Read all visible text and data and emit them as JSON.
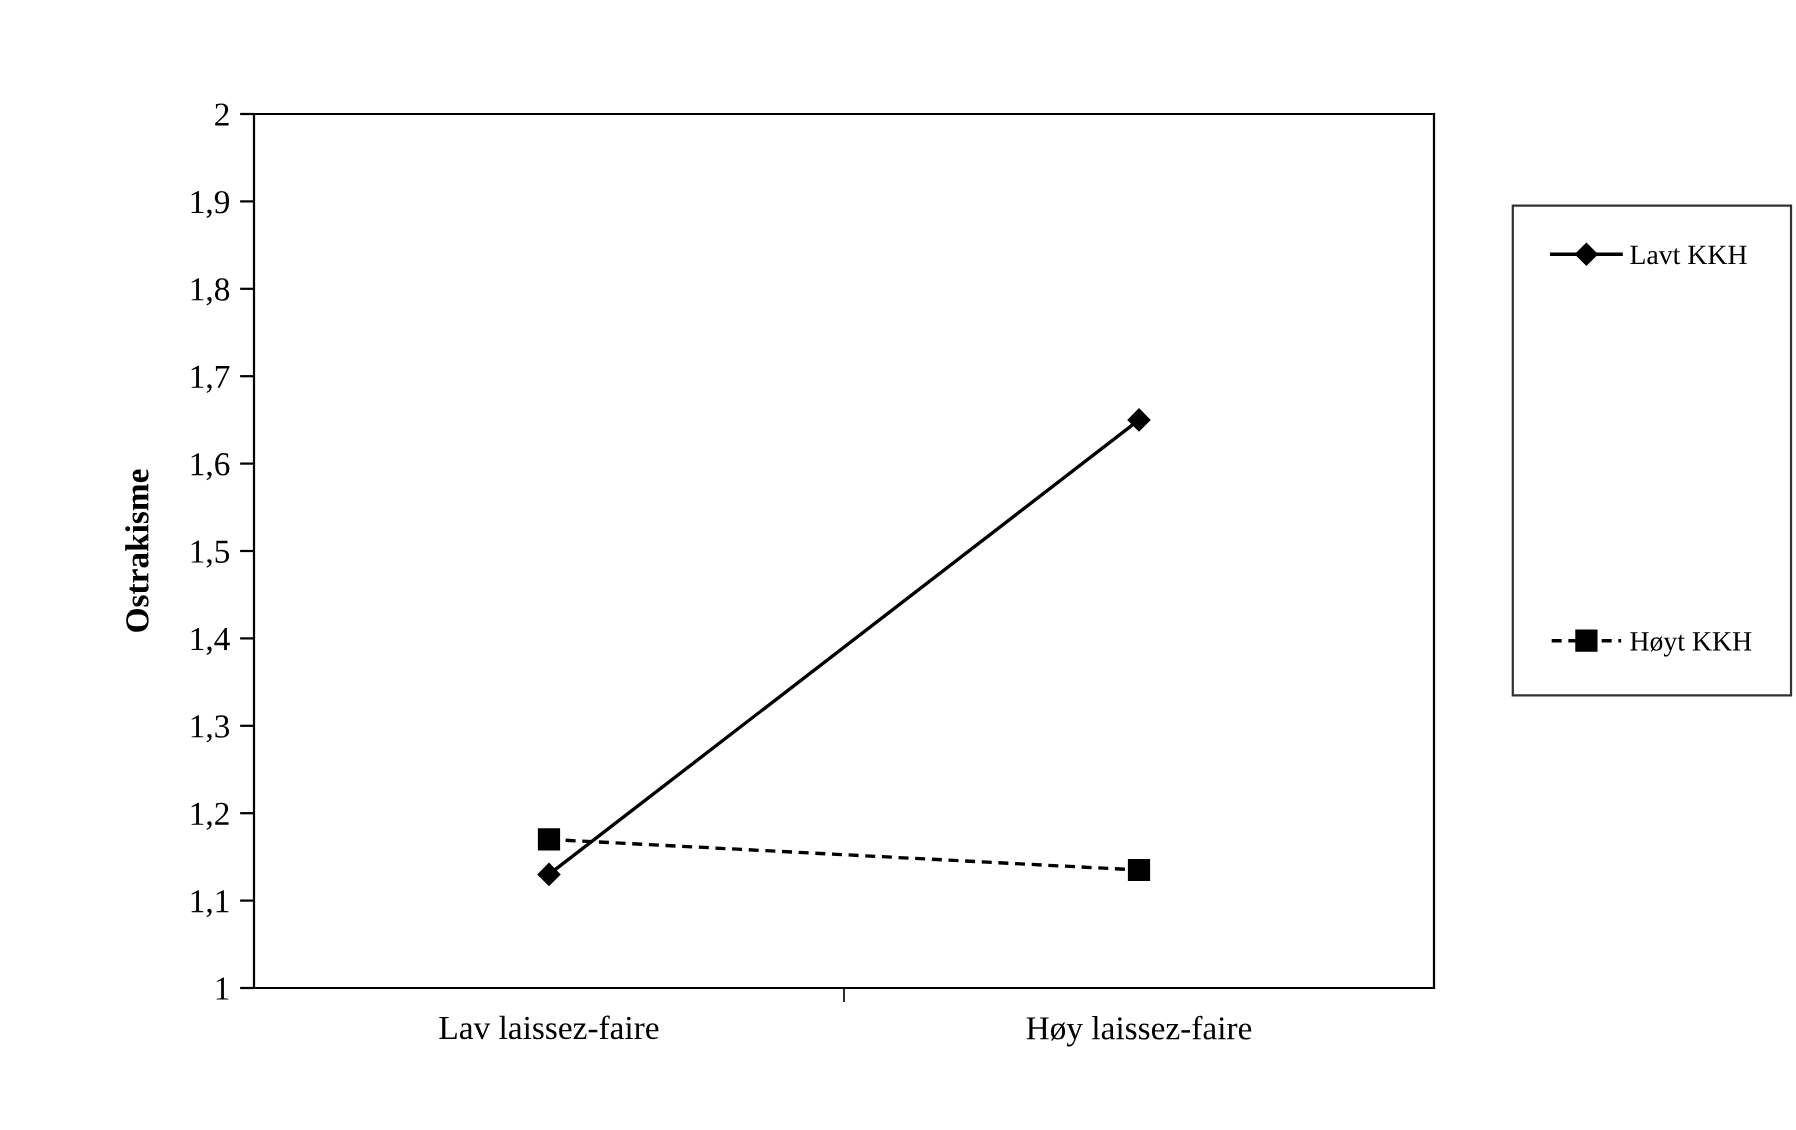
{
  "chart_data": {
    "type": "line",
    "ylabel": "Ostrakisme",
    "categories": [
      "Lav laissez-faire",
      "Høy laissez-faire"
    ],
    "series": [
      {
        "name": "Lavt KKH",
        "color": "#000000",
        "values": [
          1.13,
          1.65
        ],
        "marker": "diamond",
        "line_style": "solid"
      },
      {
        "name": "Høyt KKH",
        "color": "#000000",
        "values": [
          1.17,
          1.135
        ],
        "marker": "square",
        "line_style": "dashed"
      }
    ],
    "ylim": [
      1,
      2
    ],
    "yticks": [
      1,
      {
        "value": 1.1,
        "label": "1,1"
      },
      {
        "value": 1.2,
        "label": "1,2"
      },
      {
        "value": 1.3,
        "label": "1,3"
      },
      {
        "value": 1.4,
        "label": "1,4"
      },
      {
        "value": 1.5,
        "label": "1,5"
      },
      {
        "value": 1.6,
        "label": "1,6"
      },
      {
        "value": 1.7,
        "label": "1,7"
      },
      {
        "value": 1.8,
        "label": "1,8"
      },
      {
        "value": 1.9,
        "label": "1,9"
      },
      2
    ],
    "grid": false,
    "legend": "right"
  }
}
